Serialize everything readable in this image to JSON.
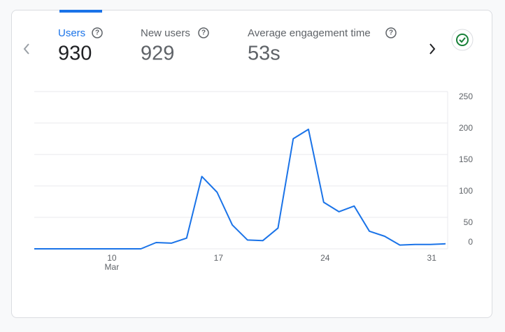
{
  "metrics": [
    {
      "label": "Users",
      "value": "930"
    },
    {
      "label": "New users",
      "value": "929"
    },
    {
      "label": "Average engagement time",
      "value": "53s"
    }
  ],
  "chart_data": {
    "type": "line",
    "categories": [
      null,
      null,
      null,
      null,
      null,
      "10",
      null,
      null,
      null,
      null,
      null,
      null,
      "17",
      null,
      null,
      null,
      null,
      null,
      null,
      "24",
      null,
      null,
      null,
      null,
      null,
      null,
      "31",
      null
    ],
    "category_sublabel": "Mar",
    "series": [
      {
        "color": "#1a73e8",
        "values": [
          0,
          0,
          0,
          0,
          0,
          0,
          0,
          0,
          10,
          9,
          17,
          115,
          90,
          38,
          14,
          13,
          33,
          175,
          190,
          74,
          59,
          68,
          28,
          20,
          6,
          7,
          7,
          8
        ]
      }
    ],
    "ylim": [
      0,
      250
    ],
    "yticks": [
      0,
      50,
      100,
      150,
      200,
      250
    ],
    "grid": true
  }
}
